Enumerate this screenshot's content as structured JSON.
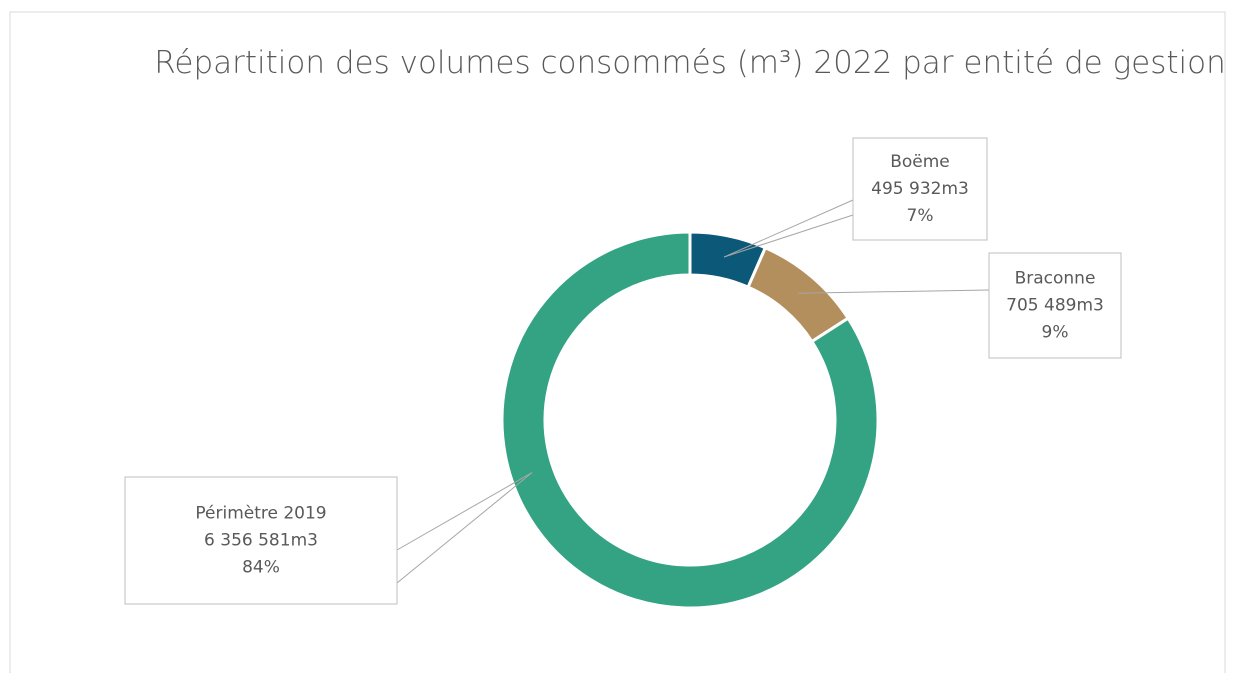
{
  "chart_data": {
    "type": "pie",
    "title": "Répartition des volumes consommés (m³) 2022 par entité de gestion",
    "categories": [
      "Boëme",
      "Braconne",
      "Périmètre 2019"
    ],
    "values": [
      495932,
      705489,
      6356581
    ],
    "value_labels": [
      "495 932m3",
      "705 489m3",
      "6 356 581m3"
    ],
    "percent_labels": [
      "7%",
      "9%",
      "84%"
    ],
    "colors": [
      "#0b5878",
      "#b38f5d",
      "#33a383"
    ],
    "donut": true
  }
}
